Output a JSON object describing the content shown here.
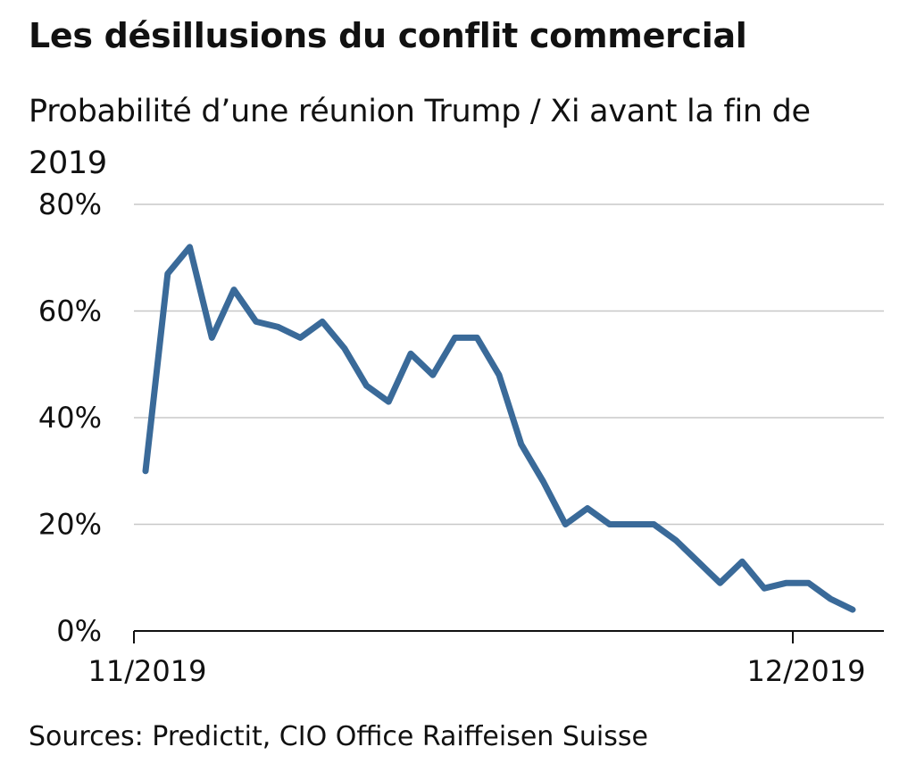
{
  "chart_data": {
    "type": "line",
    "title": "Les désillusions du conflit commercial",
    "subtitle": "Probabilité d’une réunion Trump / Xi avant la fin de 2019",
    "source": "Sources: Predictit, CIO Office Raiffeisen Suisse",
    "xlabel": "",
    "ylabel": "",
    "x_tick_labels": [
      "11/2019",
      "12/2019"
    ],
    "y_tick_labels": [
      "0%",
      "20%",
      "40%",
      "60%",
      "80%"
    ],
    "ylim": [
      0,
      80
    ],
    "grid": true,
    "series": [
      {
        "color": "#3a6a99",
        "values": [
          30,
          67,
          72,
          55,
          64,
          58,
          57,
          55,
          58,
          53,
          46,
          43,
          52,
          48,
          55,
          55,
          48,
          35,
          28,
          20,
          23,
          20,
          20,
          20,
          17,
          13,
          9,
          13,
          8,
          9,
          9,
          6,
          4
        ]
      }
    ]
  }
}
